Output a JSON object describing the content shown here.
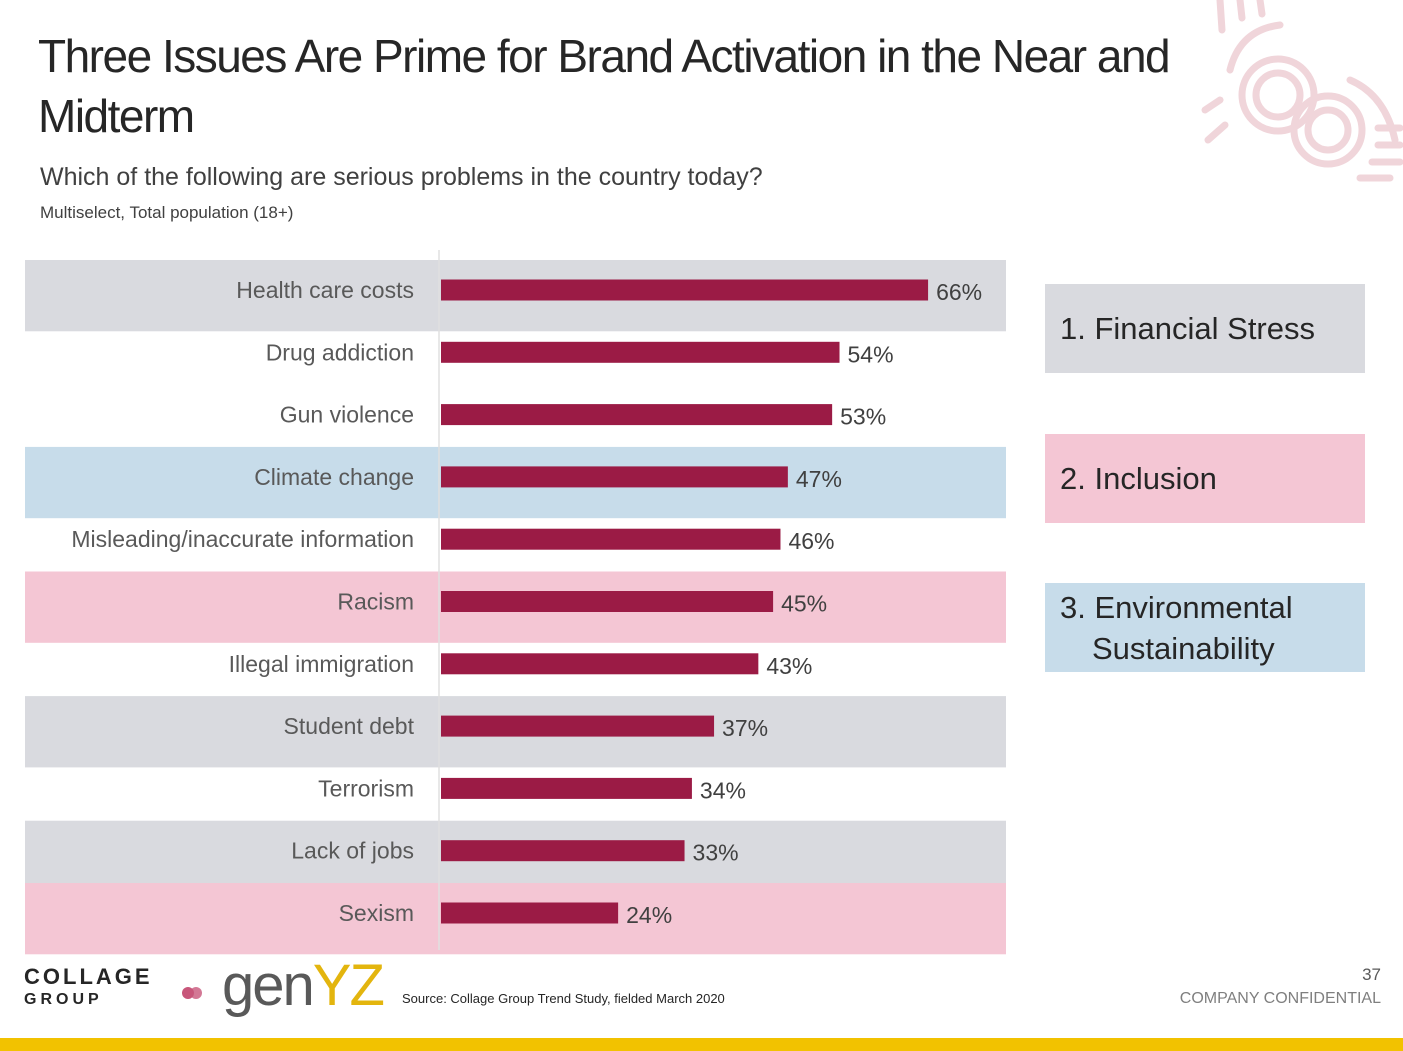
{
  "title": "Three Issues Are Prime for Brand Activation in the Near and Midterm",
  "subtitle": "Which of the following are serious problems in the country today?",
  "subnote": "Multiselect, Total population (18+)",
  "colors": {
    "bar": "#9b1b45",
    "band_gray": "#d9dadf",
    "band_pink": "#f4c6d4",
    "band_blue": "#c7dcea",
    "accent_yellow": "#f2c200"
  },
  "themes": [
    {
      "line1": "1. Financial Stress",
      "line2": "",
      "color": "gray"
    },
    {
      "line1": "2. Inclusion",
      "line2": "",
      "color": "pink"
    },
    {
      "line1": "3. Environmental",
      "line2": "Sustainability",
      "color": "blue"
    }
  ],
  "chart_data": {
    "type": "bar",
    "orientation": "horizontal",
    "categories": [
      "Health care costs",
      "Drug addiction",
      "Gun violence",
      "Climate change",
      "Misleading/inaccurate information",
      "Racism",
      "Illegal immigration",
      "Student debt",
      "Terrorism",
      "Lack of jobs",
      "Sexism"
    ],
    "values": [
      66,
      54,
      53,
      47,
      46,
      45,
      43,
      37,
      34,
      33,
      24
    ],
    "value_labels": [
      "66%",
      "54%",
      "53%",
      "47%",
      "46%",
      "45%",
      "43%",
      "37%",
      "34%",
      "33%",
      "24%"
    ],
    "row_highlight": [
      "gray",
      "none",
      "none",
      "blue",
      "none",
      "pink",
      "none",
      "gray",
      "none",
      "gray",
      "pink"
    ],
    "unit": "%"
  },
  "footer": {
    "logo_line1": "COLLAGE",
    "logo_line2": "GROUP",
    "brand_gen": "gen",
    "brand_yz": "YZ",
    "source": "Source: Collage Group Trend Study, fielded March 2020",
    "page_number": "37",
    "confidential": "COMPANY CONFIDENTIAL"
  }
}
